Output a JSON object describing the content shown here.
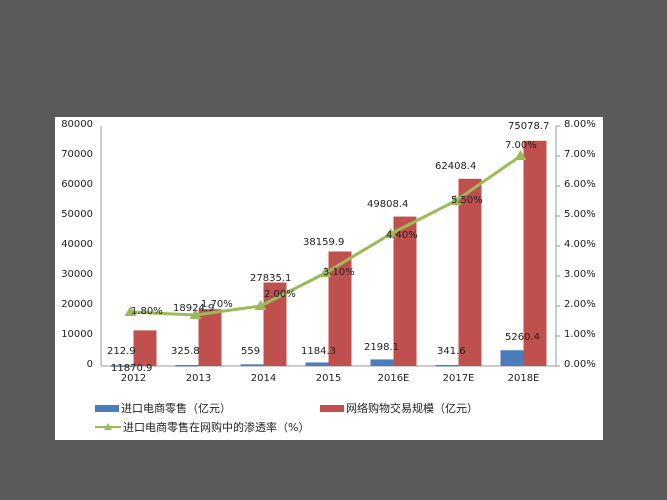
{
  "chart_data": {
    "type": "bar",
    "title": "",
    "categories": [
      "2012",
      "2013",
      "2014",
      "2015",
      "2016E",
      "2017E",
      "2018E"
    ],
    "series": [
      {
        "name": "进口电商零售（亿元）",
        "type": "bar",
        "axis": "left",
        "color": "#4a7ebb",
        "values": [
          212.9,
          325.8,
          559,
          1184.3,
          2198.1,
          341.6,
          5260.4
        ]
      },
      {
        "name": "网络购物交易规模（亿元）",
        "type": "bar",
        "axis": "left",
        "color": "#c0504d",
        "values": [
          11870.9,
          18924.9,
          27835.1,
          38159.9,
          49808.4,
          62408.4,
          75078.7
        ]
      },
      {
        "name": "进口电商零售在网购中的渗透率（%）",
        "type": "line",
        "axis": "right",
        "color": "#9bbb59",
        "values": [
          1.8,
          1.7,
          2.0,
          3.1,
          4.4,
          5.5,
          7.0
        ]
      }
    ],
    "data_labels": {
      "blue": [
        "212.9",
        "325.8",
        "559",
        "1184.3",
        "2198.1",
        "341.6",
        "5260.4"
      ],
      "red": [
        "11870.9",
        "18924.9",
        "27835.1",
        "38159.9",
        "49808.4",
        "62408.4",
        "75078.7"
      ],
      "line": [
        "1.80%",
        "1.70%",
        "2.00%",
        "3.10%",
        "4.40%",
        "5.50%",
        "7.00%"
      ]
    },
    "y_ticks": [
      "0",
      "10000",
      "20000",
      "30000",
      "40000",
      "50000",
      "60000",
      "70000",
      "80000"
    ],
    "y2_ticks": [
      "0.00%",
      "1.00%",
      "2.00%",
      "3.00%",
      "4.00%",
      "5.00%",
      "6.00%",
      "7.00%",
      "8.00%"
    ],
    "xlabel": "",
    "ylabel": "",
    "y2label": "",
    "ylim": [
      0,
      80000
    ],
    "y2lim": [
      0,
      8
    ],
    "grid": false,
    "legend_position": "bottom"
  }
}
